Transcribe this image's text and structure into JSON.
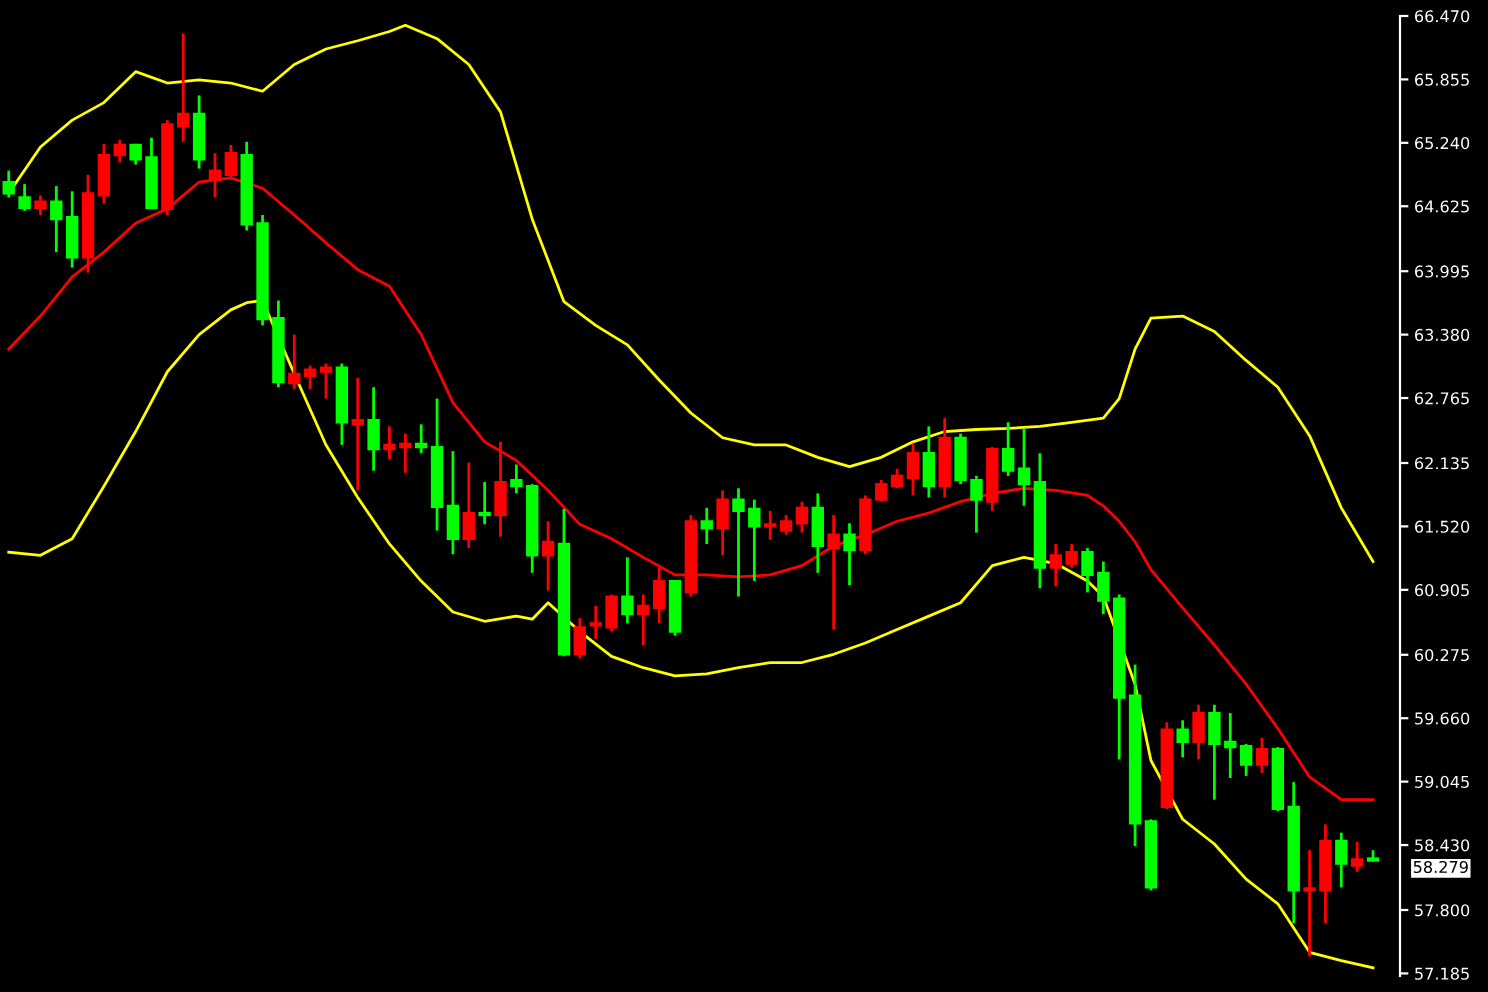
{
  "chart_data": {
    "type": "candlestick",
    "categories": [
      null,
      null,
      null,
      null,
      null,
      null,
      null,
      null,
      null,
      null,
      null,
      null,
      null,
      null,
      null,
      null,
      null,
      null,
      null,
      null,
      null,
      null,
      null,
      null,
      null,
      null,
      null,
      null,
      null,
      null,
      null,
      null,
      null,
      null,
      null,
      null,
      null,
      null,
      null,
      null,
      null,
      null,
      null,
      null,
      null,
      null,
      null,
      null,
      null,
      null,
      null,
      null,
      null,
      null,
      null,
      null,
      null,
      null,
      null,
      null,
      null,
      null,
      null,
      null,
      null,
      null,
      null,
      null,
      null,
      null,
      null,
      null,
      null,
      null,
      null,
      null,
      null,
      null,
      null,
      null,
      null,
      null,
      null,
      null,
      null,
      null,
      null
    ],
    "ohlc": [
      [
        64.86,
        64.97,
        64.71,
        64.75
      ],
      [
        64.71,
        64.84,
        64.58,
        64.61
      ],
      [
        64.61,
        64.73,
        64.54,
        64.67
      ],
      [
        64.67,
        64.82,
        64.18,
        64.5
      ],
      [
        64.52,
        64.77,
        64.03,
        64.13
      ],
      [
        64.13,
        64.93,
        63.98,
        64.75
      ],
      [
        64.73,
        65.23,
        64.65,
        65.12
      ],
      [
        65.12,
        65.27,
        65.05,
        65.22
      ],
      [
        65.22,
        65.23,
        65.03,
        65.08
      ],
      [
        65.1,
        65.29,
        64.6,
        64.61
      ],
      [
        64.6,
        65.46,
        64.54,
        65.42
      ],
      [
        65.4,
        66.3,
        65.25,
        65.52
      ],
      [
        65.52,
        65.7,
        64.99,
        65.08
      ],
      [
        64.88,
        65.14,
        64.71,
        64.97
      ],
      [
        64.93,
        65.22,
        64.88,
        65.14
      ],
      [
        65.12,
        65.25,
        64.39,
        64.45
      ],
      [
        64.46,
        64.54,
        63.47,
        63.53
      ],
      [
        63.54,
        63.71,
        62.87,
        62.92
      ],
      [
        62.91,
        63.38,
        62.85,
        63.0
      ],
      [
        62.98,
        63.08,
        62.85,
        63.04
      ],
      [
        63.02,
        63.1,
        62.76,
        63.06
      ],
      [
        63.06,
        63.1,
        62.31,
        62.53
      ],
      [
        62.51,
        62.96,
        61.87,
        62.55
      ],
      [
        62.55,
        62.87,
        62.06,
        62.27
      ],
      [
        62.27,
        62.49,
        62.17,
        62.31
      ],
      [
        62.29,
        62.42,
        62.04,
        62.32
      ],
      [
        62.32,
        62.51,
        62.23,
        62.29
      ],
      [
        62.29,
        62.76,
        61.48,
        61.71
      ],
      [
        61.72,
        62.25,
        61.25,
        61.4
      ],
      [
        61.4,
        62.14,
        61.31,
        61.65
      ],
      [
        61.65,
        61.95,
        61.54,
        61.63
      ],
      [
        61.63,
        62.34,
        61.42,
        61.95
      ],
      [
        61.97,
        62.12,
        61.84,
        61.91
      ],
      [
        61.91,
        61.93,
        61.07,
        61.24
      ],
      [
        61.24,
        61.57,
        60.9,
        61.37
      ],
      [
        61.35,
        61.69,
        60.26,
        60.28
      ],
      [
        60.28,
        60.63,
        60.24,
        60.54
      ],
      [
        60.56,
        60.75,
        60.43,
        60.58
      ],
      [
        60.54,
        60.86,
        60.5,
        60.84
      ],
      [
        60.84,
        61.22,
        60.58,
        60.67
      ],
      [
        60.67,
        60.86,
        60.37,
        60.75
      ],
      [
        60.73,
        61.12,
        60.58,
        60.99
      ],
      [
        60.99,
        60.99,
        60.46,
        60.5
      ],
      [
        60.88,
        61.63,
        60.84,
        61.57
      ],
      [
        61.57,
        61.7,
        61.35,
        61.5
      ],
      [
        61.5,
        61.87,
        61.24,
        61.78
      ],
      [
        61.78,
        61.89,
        60.84,
        61.67
      ],
      [
        61.69,
        61.78,
        60.99,
        61.52
      ],
      [
        61.52,
        61.67,
        61.39,
        61.54
      ],
      [
        61.48,
        61.63,
        61.44,
        61.57
      ],
      [
        61.55,
        61.76,
        61.46,
        61.7
      ],
      [
        61.7,
        61.84,
        61.07,
        61.33
      ],
      [
        61.31,
        61.63,
        60.52,
        61.44
      ],
      [
        61.44,
        61.55,
        60.95,
        61.29
      ],
      [
        61.29,
        61.82,
        61.25,
        61.78
      ],
      [
        61.78,
        61.97,
        61.76,
        61.93
      ],
      [
        61.91,
        62.08,
        61.89,
        62.01
      ],
      [
        61.99,
        62.32,
        61.82,
        62.23
      ],
      [
        62.23,
        62.49,
        61.8,
        61.91
      ],
      [
        61.91,
        62.57,
        61.8,
        62.38
      ],
      [
        62.38,
        62.42,
        61.93,
        61.97
      ],
      [
        61.97,
        62.01,
        61.46,
        61.78
      ],
      [
        61.76,
        62.29,
        61.67,
        62.27
      ],
      [
        62.27,
        62.53,
        62.01,
        62.06
      ],
      [
        62.08,
        62.47,
        61.72,
        61.93
      ],
      [
        61.95,
        62.23,
        60.92,
        61.12
      ],
      [
        61.12,
        61.35,
        60.94,
        61.24
      ],
      [
        61.16,
        61.35,
        61.12,
        61.27
      ],
      [
        61.27,
        61.31,
        60.88,
        61.05
      ],
      [
        61.07,
        61.18,
        60.67,
        60.8
      ],
      [
        60.82,
        60.86,
        59.26,
        59.86
      ],
      [
        59.88,
        60.18,
        58.42,
        58.64
      ],
      [
        58.66,
        58.68,
        57.99,
        58.02
      ],
      [
        58.8,
        59.62,
        58.78,
        59.55
      ],
      [
        59.55,
        59.64,
        59.28,
        59.43
      ],
      [
        59.43,
        59.79,
        59.26,
        59.71
      ],
      [
        59.71,
        59.79,
        58.87,
        59.41
      ],
      [
        59.43,
        59.71,
        59.08,
        59.38
      ],
      [
        59.39,
        59.41,
        59.1,
        59.21
      ],
      [
        59.21,
        59.47,
        59.13,
        59.36
      ],
      [
        59.36,
        59.38,
        58.76,
        58.78
      ],
      [
        58.8,
        59.04,
        57.67,
        57.99
      ],
      [
        57.99,
        58.38,
        57.35,
        58.01
      ],
      [
        57.99,
        58.63,
        57.67,
        58.47
      ],
      [
        58.47,
        58.55,
        58.02,
        58.25
      ],
      [
        58.23,
        58.46,
        58.17,
        58.29
      ],
      [
        58.3,
        58.38,
        58.27,
        58.279
      ]
    ],
    "colors": [
      "#00ff00",
      "#00ff00",
      "#ff0000",
      "#00ff00",
      "#00ff00",
      "#ff0000",
      "#ff0000",
      "#ff0000",
      "#00ff00",
      "#00ff00",
      "#ff0000",
      "#ff0000",
      "#00ff00",
      "#ff0000",
      "#ff0000",
      "#00ff00",
      "#00ff00",
      "#00ff00",
      "#ff0000",
      "#ff0000",
      "#ff0000",
      "#00ff00",
      "#ff0000",
      "#00ff00",
      "#ff0000",
      "#ff0000",
      "#00ff00",
      "#00ff00",
      "#00ff00",
      "#ff0000",
      "#00ff00",
      "#ff0000",
      "#00ff00",
      "#00ff00",
      "#ff0000",
      "#00ff00",
      "#ff0000",
      "#ff0000",
      "#ff0000",
      "#00ff00",
      "#ff0000",
      "#ff0000",
      "#00ff00",
      "#ff0000",
      "#00ff00",
      "#ff0000",
      "#00ff00",
      "#00ff00",
      "#ff0000",
      "#ff0000",
      "#ff0000",
      "#00ff00",
      "#ff0000",
      "#00ff00",
      "#ff0000",
      "#ff0000",
      "#ff0000",
      "#ff0000",
      "#00ff00",
      "#ff0000",
      "#00ff00",
      "#00ff00",
      "#ff0000",
      "#00ff00",
      "#00ff00",
      "#00ff00",
      "#ff0000",
      "#ff0000",
      "#00ff00",
      "#00ff00",
      "#00ff00",
      "#00ff00",
      "#00ff00",
      "#ff0000",
      "#00ff00",
      "#ff0000",
      "#00ff00",
      "#00ff00",
      "#00ff00",
      "#ff0000",
      "#00ff00",
      "#00ff00",
      "#ff0000",
      "#ff0000",
      "#00ff00",
      "#ff0000",
      "#00ff00"
    ],
    "series": [
      {
        "type": "line",
        "color": "#ffff00",
        "values": [
          64.75,
          null,
          65.2,
          null,
          65.46,
          null,
          65.63,
          null,
          65.93,
          null,
          65.82,
          null,
          65.85,
          null,
          65.82,
          null,
          65.74,
          null,
          66.0,
          null,
          66.15,
          null,
          66.23,
          null,
          66.32,
          66.38,
          null,
          66.25,
          null,
          66.0,
          null,
          65.54,
          null,
          64.5,
          null,
          63.7,
          null,
          63.47,
          null,
          63.28,
          null,
          62.94,
          null,
          62.62,
          null,
          62.38,
          null,
          62.31,
          null,
          62.31,
          null,
          62.19,
          null,
          62.1,
          null,
          62.19,
          null,
          62.34,
          null,
          62.44,
          null,
          62.46,
          null,
          62.47,
          null,
          62.49,
          null,
          62.53,
          null,
          62.57,
          62.76,
          63.24,
          63.54,
          null,
          63.56,
          null,
          63.41,
          null,
          63.13,
          null,
          62.87,
          null,
          62.4,
          null,
          61.7,
          null,
          61.18
        ]
      },
      {
        "type": "line",
        "color": "#ff0000",
        "values": [
          63.24,
          null,
          63.56,
          null,
          63.94,
          null,
          64.18,
          null,
          64.46,
          null,
          64.6,
          null,
          64.86,
          null,
          64.9,
          null,
          64.8,
          null,
          64.54,
          null,
          64.27,
          null,
          64.01,
          null,
          63.85,
          null,
          63.38,
          null,
          62.72,
          null,
          62.34,
          null,
          62.16,
          null,
          61.87,
          null,
          61.54,
          null,
          61.4,
          null,
          61.22,
          null,
          61.05,
          null,
          61.05,
          null,
          61.03,
          null,
          61.05,
          null,
          61.14,
          null,
          61.33,
          null,
          61.44,
          null,
          61.57,
          null,
          61.65,
          null,
          61.76,
          null,
          61.84,
          null,
          61.89,
          null,
          61.87,
          null,
          61.82,
          61.72,
          61.57,
          61.37,
          61.1,
          null,
          60.73,
          null,
          60.37,
          null,
          59.99,
          null,
          59.56,
          null,
          59.09,
          null,
          58.87,
          null,
          58.87
        ]
      },
      {
        "type": "line",
        "color": "#ffff00",
        "values": [
          61.27,
          null,
          61.24,
          null,
          61.4,
          null,
          61.91,
          null,
          62.44,
          null,
          63.02,
          null,
          63.38,
          null,
          63.62,
          63.69,
          63.71,
          null,
          63.0,
          null,
          62.31,
          null,
          61.8,
          null,
          61.35,
          null,
          60.99,
          null,
          60.69,
          null,
          60.6,
          null,
          60.65,
          60.62,
          60.78,
          null,
          60.5,
          null,
          60.26,
          null,
          60.15,
          null,
          60.07,
          null,
          60.09,
          null,
          60.15,
          null,
          60.2,
          null,
          60.2,
          null,
          60.28,
          null,
          60.39,
          null,
          60.52,
          null,
          60.65,
          null,
          60.78,
          null,
          61.14,
          null,
          61.22,
          null,
          61.16,
          null,
          60.99,
          60.84,
          null,
          59.99,
          59.25,
          null,
          58.68,
          null,
          58.44,
          null,
          58.1,
          null,
          57.86,
          null,
          57.39,
          null,
          57.31,
          null,
          57.24
        ]
      }
    ],
    "ylim": [
      57.16,
      66.47
    ],
    "yticks": [
      {
        "value": 66.47,
        "label": "66.470"
      },
      {
        "value": 65.855,
        "label": "65.855"
      },
      {
        "value": 65.24,
        "label": "65.240"
      },
      {
        "value": 64.625,
        "label": "64.625"
      },
      {
        "value": 63.995,
        "label": "63.995"
      },
      {
        "value": 63.38,
        "label": "63.380"
      },
      {
        "value": 62.765,
        "label": "62.765"
      },
      {
        "value": 62.135,
        "label": "62.135"
      },
      {
        "value": 61.52,
        "label": "61.520"
      },
      {
        "value": 60.905,
        "label": "60.905"
      },
      {
        "value": 60.275,
        "label": "60.275"
      },
      {
        "value": 59.66,
        "label": "59.660"
      },
      {
        "value": 59.045,
        "label": "59.045"
      },
      {
        "value": 58.43,
        "label": "58.430"
      },
      {
        "value": 57.8,
        "label": "57.800"
      },
      {
        "value": 57.185,
        "label": "57.185"
      }
    ],
    "tick_labels": "y",
    "annotations": [
      "58.279"
    ]
  }
}
